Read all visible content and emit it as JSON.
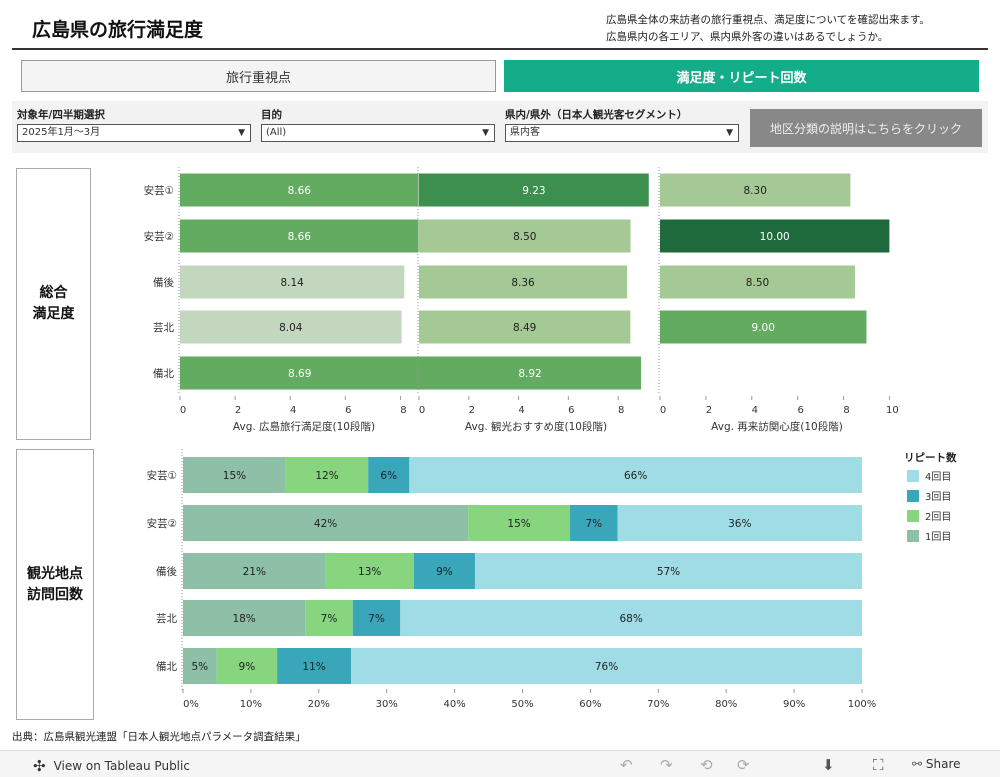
{
  "header": {
    "title": "広島県の旅行満足度",
    "description_line1": "広島県全体の来訪者の旅行重視点、満足度についてを確認出来ます。",
    "description_line2": "広島県内の各エリア、県内県外客の違いはあるでしょうか。"
  },
  "tabs": [
    {
      "label": "旅行重視点",
      "active": false
    },
    {
      "label": "満足度・リピート回数",
      "active": true
    }
  ],
  "filters": {
    "period": {
      "label": "対象年/四半期選択",
      "value": "2025年1月～3月"
    },
    "purpose": {
      "label": "目的",
      "value": "(All)"
    },
    "segment": {
      "label": "県内/県外（日本人観光客セグメント）",
      "value": "県内客"
    },
    "info_button_label": "地区分類の説明はこちらをクリック"
  },
  "row_headers": {
    "satisfaction_line1": "総合",
    "satisfaction_line2": "満足度",
    "visits_line1": "観光地点",
    "visits_line2": "訪問回数"
  },
  "colors": {
    "accent": "#14ad8a",
    "bar_scale": [
      "#c3d7bf",
      "#a4c994",
      "#63ab61",
      "#3d8f4f",
      "#2a7b47",
      "#1e6a3c"
    ],
    "visit_1": "#8ebfa7",
    "visit_2": "#88d57f",
    "visit_3": "#3aa6ba",
    "visit_4": "#9fdce6"
  },
  "chart_data": [
    {
      "type": "bar",
      "orientation": "horizontal",
      "categories": [
        "安芸①",
        "安芸②",
        "備後",
        "芸北",
        "備北"
      ],
      "values": [
        8.66,
        8.66,
        8.14,
        8.04,
        8.69
      ],
      "labels": [
        "8.66",
        "8.66",
        "8.14",
        "8.04",
        "8.69"
      ],
      "xlabel": "Avg. 広島旅行満足度(10段階)",
      "xlim": [
        0,
        9
      ],
      "ticks": [
        0,
        2,
        4,
        6,
        8
      ]
    },
    {
      "type": "bar",
      "orientation": "horizontal",
      "categories": [
        "安芸①",
        "安芸②",
        "備後",
        "芸北",
        "備北"
      ],
      "values": [
        9.23,
        8.5,
        8.36,
        8.49,
        8.92
      ],
      "labels": [
        "9.23",
        "8.50",
        "8.36",
        "8.49",
        "8.92"
      ],
      "xlabel": "Avg. 観光おすすめ度(10段階)",
      "xlim": [
        0,
        9.4
      ],
      "ticks": [
        0,
        2,
        4,
        6,
        8
      ]
    },
    {
      "type": "bar",
      "orientation": "horizontal",
      "categories": [
        "安芸①",
        "安芸②",
        "備後",
        "芸北",
        "備北"
      ],
      "values": [
        8.3,
        10.0,
        8.5,
        9.0,
        null
      ],
      "labels": [
        "8.30",
        "10.00",
        "8.50",
        "9.00",
        ""
      ],
      "xlabel": "Avg. 再来訪関心度(10段階)",
      "xlim": [
        0,
        10.2
      ],
      "ticks": [
        0,
        2,
        4,
        6,
        8,
        10
      ]
    },
    {
      "type": "bar",
      "stacked": true,
      "orientation": "horizontal",
      "categories": [
        "安芸①",
        "安芸②",
        "備後",
        "芸北",
        "備北"
      ],
      "series": [
        {
          "name": "1回目",
          "values": [
            15,
            42,
            21,
            18,
            5
          ]
        },
        {
          "name": "2回目",
          "values": [
            12,
            15,
            13,
            7,
            9
          ]
        },
        {
          "name": "3回目",
          "values": [
            6,
            7,
            9,
            7,
            11
          ]
        },
        {
          "name": "4回目",
          "values": [
            66,
            36,
            57,
            68,
            76
          ]
        }
      ],
      "legend_title": "リピート数",
      "legend_order": [
        "4回目",
        "3回目",
        "2回目",
        "1回目"
      ],
      "legend_position": "right",
      "xlim": [
        0,
        100
      ],
      "ticks": [
        "0%",
        "10%",
        "20%",
        "30%",
        "40%",
        "50%",
        "60%",
        "70%",
        "80%",
        "90%",
        "100%"
      ]
    }
  ],
  "footer": {
    "source": "出典：広島県観光連盟「日本人観光地点パラメータ調査結果」",
    "tableau_link": "View on Tableau Public",
    "share": "Share",
    "icons": [
      "undo-icon",
      "redo-icon",
      "revert-icon",
      "refresh-icon",
      "download-icon",
      "fullscreen-icon",
      "share-icon"
    ]
  }
}
